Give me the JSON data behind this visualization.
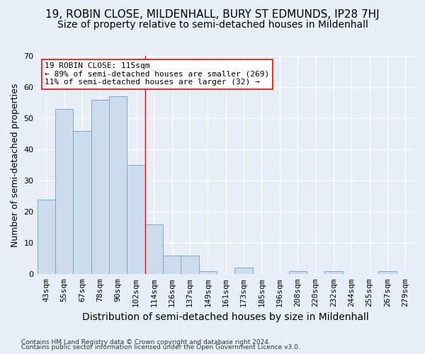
{
  "title": "19, ROBIN CLOSE, MILDENHALL, BURY ST EDMUNDS, IP28 7HJ",
  "subtitle": "Size of property relative to semi-detached houses in Mildenhall",
  "xlabel": "Distribution of semi-detached houses by size in Mildenhall",
  "ylabel": "Number of semi-detached properties",
  "categories": [
    "43sqm",
    "55sqm",
    "67sqm",
    "78sqm",
    "90sqm",
    "102sqm",
    "114sqm",
    "126sqm",
    "137sqm",
    "149sqm",
    "161sqm",
    "173sqm",
    "185sqm",
    "196sqm",
    "208sqm",
    "220sqm",
    "232sqm",
    "244sqm",
    "255sqm",
    "267sqm",
    "279sqm"
  ],
  "values": [
    24,
    53,
    46,
    56,
    57,
    35,
    16,
    6,
    6,
    1,
    0,
    2,
    0,
    0,
    1,
    0,
    1,
    0,
    0,
    1,
    0
  ],
  "bar_color": "#ccdcec",
  "bar_edge_color": "#7aaac8",
  "annotation_line1": "19 ROBIN CLOSE: 115sqm",
  "annotation_line2": "← 89% of semi-detached houses are smaller (269)",
  "annotation_line3": "11% of semi-detached houses are larger (32) →",
  "ylim": [
    0,
    70
  ],
  "yticks": [
    0,
    10,
    20,
    30,
    40,
    50,
    60,
    70
  ],
  "background_color": "#e8eef8",
  "plot_bg_color": "#e8eef8",
  "footer_line1": "Contains HM Land Registry data © Crown copyright and database right 2024.",
  "footer_line2": "Contains public sector information licensed under the Open Government Licence v3.0.",
  "title_fontsize": 11,
  "subtitle_fontsize": 10,
  "xlabel_fontsize": 10,
  "ylabel_fontsize": 9,
  "tick_fontsize": 8,
  "annotation_fontsize": 8,
  "footer_fontsize": 6.5
}
